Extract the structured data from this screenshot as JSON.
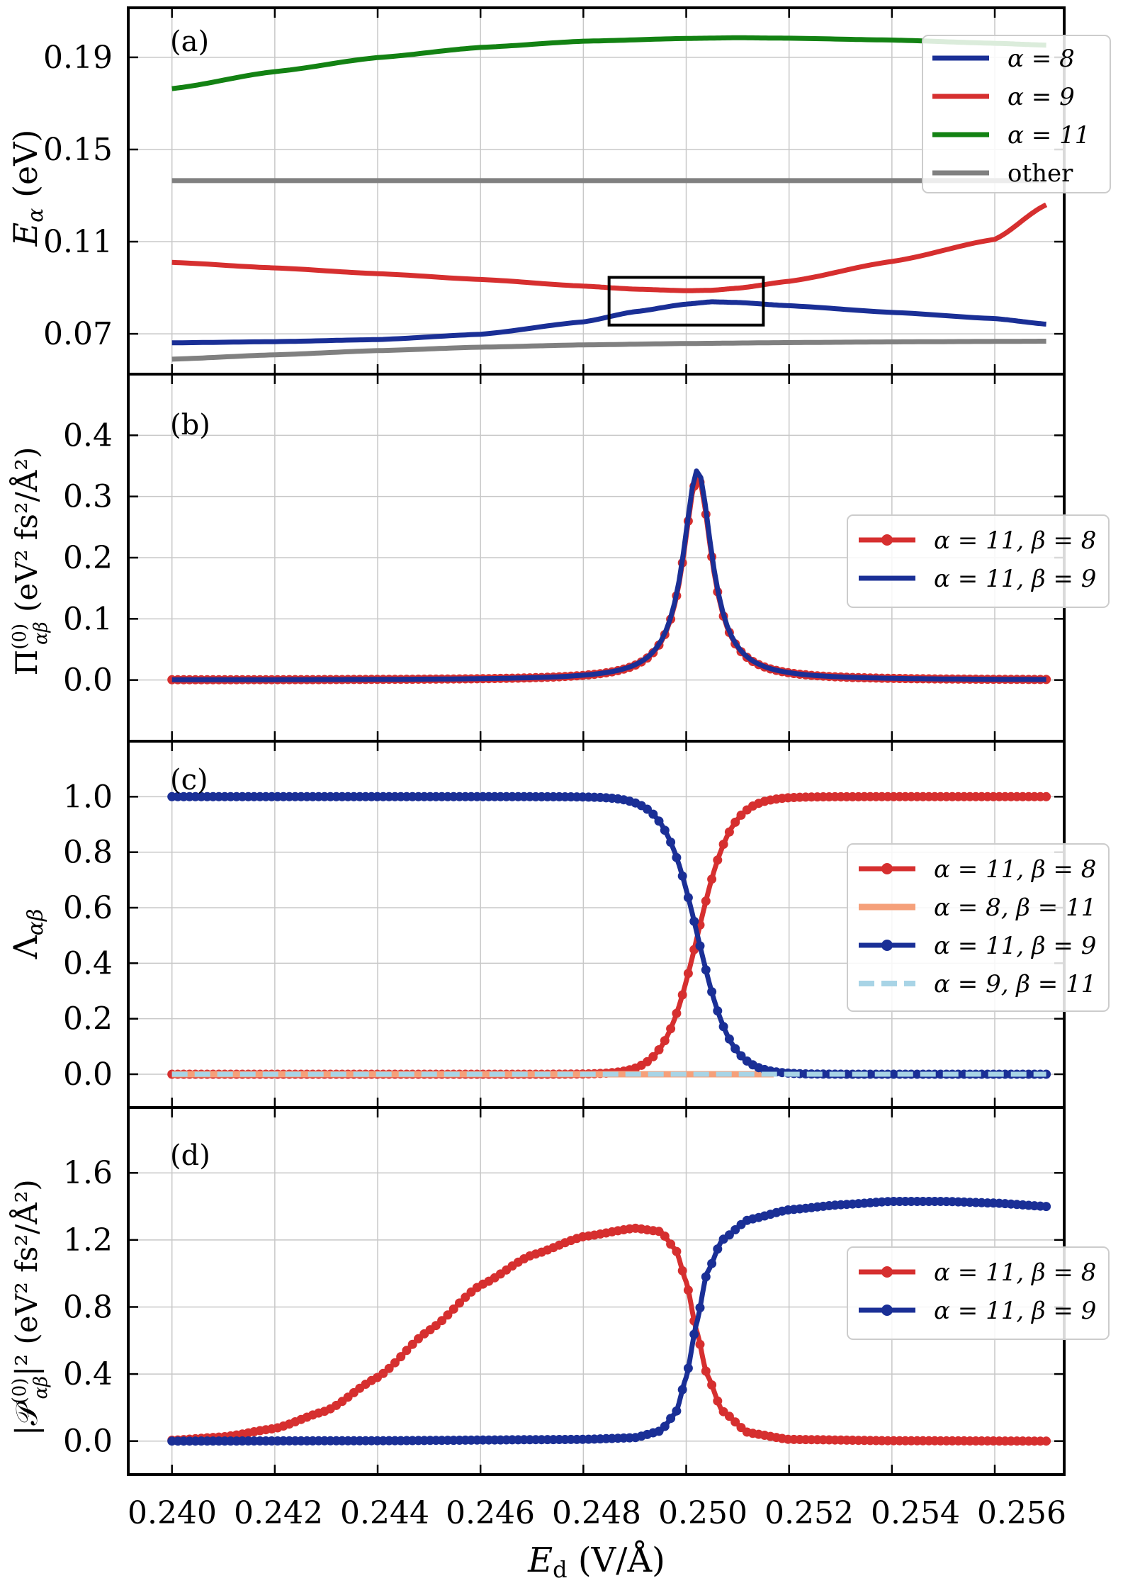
{
  "colors": {
    "blue": "#1a2f96",
    "red": "#d62f2f",
    "green": "#138213",
    "gray": "#808080",
    "salmon": "#f5a07a",
    "lightblue": "#a8d4e6"
  },
  "x_axis": {
    "label_main": "E",
    "label_sub": "d",
    "label_unit": " (V/Å)",
    "range": [
      0.23915,
      0.25735
    ],
    "ticks": [
      "0.240",
      "0.242",
      "0.244",
      "0.246",
      "0.248",
      "0.250",
      "0.252",
      "0.254",
      "0.256"
    ]
  },
  "chart_data": [
    {
      "type": "line",
      "panel_label": "(a)",
      "ylabel": {
        "main": "E",
        "sub": "α",
        "unit": " (eV)"
      },
      "ylim": [
        0.0525,
        0.2115
      ],
      "yticks": [
        "0.07",
        "0.11",
        "0.15",
        "0.19"
      ],
      "legend": [
        {
          "label": "α = 8",
          "color": "blue"
        },
        {
          "label": "α = 9",
          "color": "red"
        },
        {
          "label": "α = 11",
          "color": "green"
        },
        {
          "label": "other",
          "color": "gray"
        }
      ],
      "series": [
        {
          "name": "α = 11",
          "color": "green",
          "x": [
            0.24,
            0.242,
            0.244,
            0.246,
            0.248,
            0.25,
            0.251,
            0.252,
            0.254,
            0.256,
            0.257
          ],
          "y": [
            0.1764,
            0.1838,
            0.1899,
            0.1943,
            0.197,
            0.1982,
            0.1985,
            0.1983,
            0.1975,
            0.1961,
            0.1953
          ]
        },
        {
          "name": "other",
          "color": "gray",
          "x": [
            0.24,
            0.257
          ],
          "y": [
            0.1365,
            0.1365
          ]
        },
        {
          "name": "α = 9",
          "color": "red",
          "x": [
            0.24,
            0.242,
            0.244,
            0.246,
            0.248,
            0.249,
            0.25,
            0.2505,
            0.251,
            0.252,
            0.254,
            0.256,
            0.257
          ],
          "y": [
            0.101,
            0.0986,
            0.0961,
            0.0936,
            0.0907,
            0.0894,
            0.0887,
            0.0889,
            0.0898,
            0.0928,
            0.1014,
            0.111,
            0.126
          ]
        },
        {
          "name": "α = 8",
          "color": "blue",
          "x": [
            0.24,
            0.242,
            0.244,
            0.246,
            0.248,
            0.249,
            0.25,
            0.2505,
            0.251,
            0.252,
            0.254,
            0.256,
            0.257
          ],
          "y": [
            0.0661,
            0.0666,
            0.0675,
            0.0698,
            0.0752,
            0.0796,
            0.0829,
            0.0839,
            0.0836,
            0.0822,
            0.0793,
            0.0766,
            0.0742
          ]
        },
        {
          "name": "other low",
          "color": "gray",
          "x": [
            0.24,
            0.242,
            0.244,
            0.246,
            0.248,
            0.25,
            0.252,
            0.254,
            0.256,
            0.257
          ],
          "y": [
            0.059,
            0.0609,
            0.0627,
            0.0642,
            0.0652,
            0.0658,
            0.0662,
            0.0665,
            0.0667,
            0.0668
          ]
        }
      ],
      "annotation": {
        "type": "rectangle",
        "x": [
          0.2485,
          0.2515
        ],
        "y": [
          0.0738,
          0.0945
        ]
      }
    },
    {
      "type": "line",
      "panel_label": "(b)",
      "ylabel": {
        "main": "Π",
        "sup": "(0)",
        "sub": "αβ",
        "unit": " (eV² fs²/Å²)"
      },
      "ylim": [
        -0.1,
        0.5
      ],
      "yticks": [
        "0.0",
        "0.1",
        "0.2",
        "0.3",
        "0.4"
      ],
      "legend": [
        {
          "label": "α = 11, β = 8",
          "color": "red",
          "markers": true
        },
        {
          "label": "α = 11, β = 9",
          "color": "blue",
          "markers": false
        }
      ],
      "series": [
        {
          "name": "α = 11, β = 8",
          "color": "red",
          "markers": true,
          "model": "lorentz",
          "x0": 0.25022,
          "amplitude": 0.333,
          "gamma": 0.00034,
          "xrange": [
            0.24,
            0.257
          ]
        },
        {
          "name": "α = 11, β = 9",
          "color": "blue",
          "markers": false,
          "model": "lorentz",
          "x0": 0.25022,
          "amplitude": 0.343,
          "gamma": 0.00034,
          "xrange": [
            0.24,
            0.257
          ]
        }
      ]
    },
    {
      "type": "line",
      "panel_label": "(c)",
      "ylabel": {
        "main": "Λ",
        "sub": "αβ"
      },
      "ylim": [
        -0.12,
        1.2
      ],
      "yticks": [
        "0.0",
        "0.2",
        "0.4",
        "0.6",
        "0.8",
        "1.0"
      ],
      "legend": [
        {
          "label": "α = 11, β = 8",
          "color": "red",
          "markers": true
        },
        {
          "label": "α = 8, β = 11",
          "color": "salmon",
          "markers": false
        },
        {
          "label": "α = 11, β = 9",
          "color": "blue",
          "markers": true
        },
        {
          "label": "α = 9, β = 11",
          "color": "lightblue",
          "markers": false,
          "dashed": true
        }
      ],
      "series": [
        {
          "name": "α = 11, β = 8",
          "color": "red",
          "markers": true,
          "model": "sigmoid_up",
          "x0": 0.25022,
          "width": 0.00032,
          "xrange": [
            0.24,
            0.257
          ]
        },
        {
          "name": "α = 8, β = 11",
          "color": "salmon",
          "markers": false,
          "x": [
            0.24,
            0.2517
          ],
          "y": [
            0.0,
            0.0
          ]
        },
        {
          "name": "α = 11, β = 9",
          "color": "blue",
          "markers": true,
          "model": "sigmoid_down",
          "x0": 0.25022,
          "width": 0.00032,
          "xrange": [
            0.24,
            0.257
          ]
        },
        {
          "name": "α = 9, β = 11",
          "color": "lightblue",
          "markers": false,
          "dashed": true,
          "x": [
            0.24,
            0.257
          ],
          "y": [
            0.0,
            0.0
          ]
        }
      ]
    },
    {
      "type": "line",
      "panel_label": "(d)",
      "ylabel": {
        "main": "|𝒫",
        "sup": "(0)",
        "sub": "αβ",
        "tail": "|²",
        "unit": " (eV² fs²/Å²)"
      },
      "ylim": [
        -0.2,
        1.99
      ],
      "yticks": [
        "0.0",
        "0.4",
        "0.8",
        "1.2",
        "1.6"
      ],
      "legend": [
        {
          "label": "α = 11, β = 8",
          "color": "red",
          "markers": true
        },
        {
          "label": "α = 11, β = 9",
          "color": "blue",
          "markers": true
        }
      ],
      "series": [
        {
          "name": "α = 11, β = 8",
          "color": "red",
          "markers": true,
          "x": [
            0.24,
            0.241,
            0.242,
            0.243,
            0.244,
            0.245,
            0.246,
            0.247,
            0.248,
            0.249,
            0.2495,
            0.2498,
            0.25,
            0.2502,
            0.2504,
            0.2507,
            0.2512,
            0.252,
            0.254,
            0.257
          ],
          "y": [
            0.005,
            0.025,
            0.075,
            0.18,
            0.38,
            0.66,
            0.93,
            1.11,
            1.22,
            1.27,
            1.25,
            1.14,
            0.95,
            0.66,
            0.4,
            0.18,
            0.05,
            0.01,
            0.002,
            0.0
          ]
        },
        {
          "name": "α = 11, β = 9",
          "color": "blue",
          "markers": true,
          "x": [
            0.24,
            0.244,
            0.248,
            0.249,
            0.2495,
            0.2498,
            0.25,
            0.2502,
            0.2504,
            0.2507,
            0.2512,
            0.252,
            0.253,
            0.254,
            0.255,
            0.256,
            0.257
          ],
          "y": [
            0.0,
            0.002,
            0.01,
            0.02,
            0.06,
            0.17,
            0.38,
            0.7,
            1.0,
            1.2,
            1.32,
            1.38,
            1.41,
            1.43,
            1.43,
            1.42,
            1.4
          ]
        }
      ]
    }
  ]
}
